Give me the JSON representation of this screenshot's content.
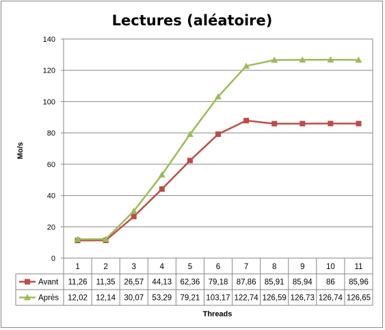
{
  "chart_data": {
    "type": "line",
    "title": "Lectures (aléatoire)",
    "xlabel": "Threads",
    "ylabel": "Mo/s",
    "ylim": [
      0,
      140
    ],
    "ytick_step": 20,
    "grid": true,
    "legend": "data-table",
    "categories": [
      "1",
      "2",
      "3",
      "4",
      "5",
      "6",
      "7",
      "8",
      "9",
      "10",
      "11"
    ],
    "series": [
      {
        "name": "Avant",
        "color": "#be4b48",
        "marker": "square",
        "values": [
          11.26,
          11.35,
          26.57,
          44.13,
          62.36,
          79.18,
          87.86,
          85.91,
          85.94,
          86,
          85.96
        ],
        "labels": [
          "11,26",
          "11,35",
          "26,57",
          "44,13",
          "62,36",
          "79,18",
          "87,86",
          "85,91",
          "85,94",
          "86",
          "85,96"
        ]
      },
      {
        "name": "Après",
        "color": "#9bbb59",
        "marker": "triangle",
        "values": [
          12.02,
          12.14,
          30.07,
          53.29,
          79.21,
          103.17,
          122.74,
          126.59,
          126.73,
          126.74,
          126.65
        ],
        "labels": [
          "12,02",
          "12,14",
          "30,07",
          "53,29",
          "79,21",
          "103,17",
          "122,74",
          "126,59",
          "126,73",
          "126,74",
          "126,65"
        ]
      }
    ]
  }
}
